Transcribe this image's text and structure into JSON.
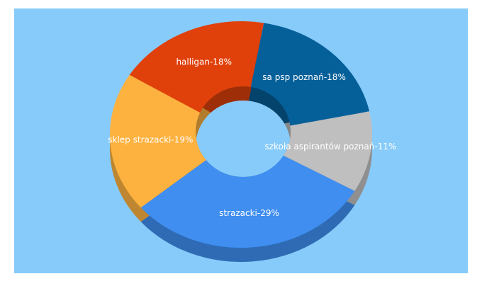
{
  "chart_data": {
    "type": "donut3d",
    "values": [
      18,
      11,
      29,
      19,
      18
    ],
    "value_labels": [
      "sa psp poznań-18%",
      "szkoła aspirantów poznań-11%",
      "strazacki-29%",
      "sklep strazacki-19%",
      "halligan-18%"
    ],
    "colors": [
      "#05609a",
      "#bfbfbf",
      "#3f8ef0",
      "#fdb240",
      "#e0410b"
    ]
  }
}
